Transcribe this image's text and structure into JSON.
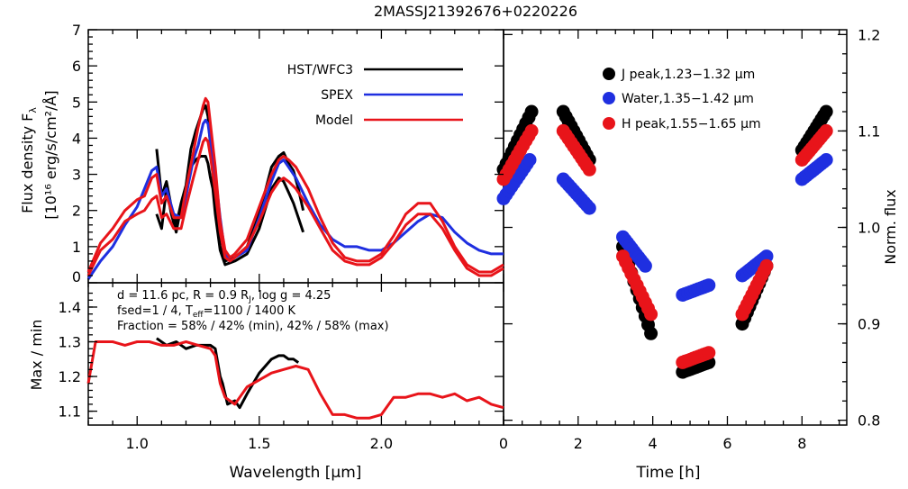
{
  "figure_title": "2MASSJ21392676+0220226",
  "spectrum_panel": {
    "ylabel_line1": "Flux density F",
    "ylabel_sub": "λ",
    "ylabel_line2": "[10¹⁶ erg/s/cm²/Å]",
    "legend": [
      {
        "label": "HST/WFC3",
        "color": "#000000"
      },
      {
        "label": "SPEX",
        "color": "#1f2fe0"
      },
      {
        "label": "Model",
        "color": "#e8141a"
      }
    ]
  },
  "ratio_panel": {
    "ylabel": "Max / min",
    "params_line1": "d = 11.6 pc, R = 0.9 R",
    "params_line1_sub": "J",
    "params_line1_tail": ", log g = 4.25",
    "params_line2": "fsed=1 / 4, T",
    "params_line2_sub": "eff",
    "params_line2_tail": "=1100 / 1400 K",
    "params_line3": "Fraction = 58% / 42% (min), 42% / 58% (max)",
    "xlabel": "Wavelength [μm]"
  },
  "lightcurve_panel": {
    "xlabel": "Time [h]",
    "ylabel": "Norm. flux",
    "legend": [
      {
        "label": "J peak,1.23−1.32 μm",
        "color": "#000000"
      },
      {
        "label": "Water,1.35−1.42 μm",
        "color": "#1f2fe0"
      },
      {
        "label": "H peak,1.55−1.65 μm",
        "color": "#e8141a"
      }
    ]
  },
  "chart_data": [
    {
      "type": "line",
      "title": "2MASSJ21392676+0220226",
      "xlim": [
        0.8,
        2.5
      ],
      "ylim": [
        0,
        7
      ],
      "yticks": [
        "0",
        "1",
        "2",
        "3",
        "4",
        "5",
        "6",
        "7"
      ],
      "series": [
        {
          "name": "HST/WFC3",
          "color": "#000000",
          "x": [
            1.08,
            1.1,
            1.12,
            1.14,
            1.16,
            1.18,
            1.2,
            1.22,
            1.24,
            1.26,
            1.27,
            1.28,
            1.29,
            1.3,
            1.31,
            1.32,
            1.34,
            1.36,
            1.4,
            1.45,
            1.5,
            1.55,
            1.58,
            1.6,
            1.62,
            1.64,
            1.66,
            1.68
          ],
          "y": [
            1.9,
            1.5,
            2.6,
            1.9,
            1.4,
            2.1,
            2.4,
            3.2,
            3.4,
            3.5,
            3.5,
            3.5,
            3.3,
            2.9,
            2.6,
            1.9,
            0.9,
            0.5,
            0.6,
            0.8,
            1.5,
            2.6,
            2.9,
            2.8,
            2.5,
            2.2,
            1.8,
            1.4
          ]
        },
        {
          "name": "HST/WFC3",
          "color": "#000000",
          "x": [
            1.08,
            1.1,
            1.12,
            1.14,
            1.16,
            1.18,
            1.2,
            1.22,
            1.24,
            1.26,
            1.27,
            1.28,
            1.29,
            1.3,
            1.31,
            1.32,
            1.34,
            1.36,
            1.4,
            1.45,
            1.5,
            1.55,
            1.58,
            1.6,
            1.62,
            1.64,
            1.66,
            1.68
          ],
          "y": [
            3.7,
            2.4,
            2.8,
            2.1,
            1.6,
            2.2,
            2.7,
            3.7,
            4.2,
            4.6,
            4.8,
            4.9,
            4.6,
            3.8,
            3.0,
            2.0,
            1.0,
            0.6,
            0.7,
            1.0,
            1.9,
            3.2,
            3.5,
            3.6,
            3.3,
            3.1,
            2.6,
            2.0
          ]
        },
        {
          "name": "SPEX",
          "color": "#1f2fe0",
          "x": [
            0.8,
            0.85,
            0.9,
            0.95,
            1.0,
            1.03,
            1.06,
            1.08,
            1.1,
            1.12,
            1.15,
            1.18,
            1.2,
            1.23,
            1.25,
            1.27,
            1.28,
            1.29,
            1.3,
            1.32,
            1.34,
            1.36,
            1.38,
            1.4,
            1.45,
            1.5,
            1.55,
            1.58,
            1.6,
            1.62,
            1.65,
            1.7,
            1.75,
            1.8,
            1.85,
            1.9,
            1.95,
            2.0,
            2.05,
            2.1,
            2.15,
            2.2,
            2.25,
            2.3,
            2.35,
            2.4,
            2.45,
            2.5
          ],
          "y": [
            0.1,
            0.6,
            1.0,
            1.6,
            2.1,
            2.6,
            3.1,
            3.2,
            2.4,
            2.6,
            1.9,
            1.8,
            2.4,
            3.4,
            3.8,
            4.4,
            4.5,
            4.4,
            3.9,
            3.0,
            1.8,
            0.8,
            0.6,
            0.7,
            0.9,
            1.8,
            2.8,
            3.3,
            3.4,
            3.2,
            2.9,
            2.2,
            1.6,
            1.2,
            1.0,
            1.0,
            0.9,
            0.9,
            1.1,
            1.4,
            1.7,
            1.9,
            1.8,
            1.4,
            1.1,
            0.9,
            0.8,
            0.8
          ]
        },
        {
          "name": "Model",
          "color": "#e8141a",
          "x": [
            0.8,
            0.85,
            0.9,
            0.95,
            1.0,
            1.03,
            1.06,
            1.08,
            1.1,
            1.12,
            1.15,
            1.18,
            1.2,
            1.23,
            1.25,
            1.27,
            1.28,
            1.29,
            1.3,
            1.32,
            1.34,
            1.36,
            1.38,
            1.4,
            1.45,
            1.5,
            1.55,
            1.58,
            1.6,
            1.62,
            1.65,
            1.7,
            1.75,
            1.8,
            1.85,
            1.9,
            1.95,
            2.0,
            2.05,
            2.1,
            2.15,
            2.2,
            2.25,
            2.3,
            2.35,
            2.4,
            2.45,
            2.5
          ],
          "y": [
            0.3,
            1.1,
            1.5,
            2.0,
            2.3,
            2.4,
            2.9,
            3.0,
            2.2,
            2.4,
            1.8,
            1.8,
            2.6,
            3.6,
            4.3,
            4.9,
            5.1,
            5.0,
            4.4,
            3.2,
            1.7,
            0.9,
            0.7,
            0.8,
            1.2,
            2.1,
            3.0,
            3.4,
            3.5,
            3.4,
            3.2,
            2.6,
            1.8,
            1.1,
            0.7,
            0.6,
            0.6,
            0.8,
            1.3,
            1.9,
            2.2,
            2.2,
            1.7,
            1.0,
            0.5,
            0.3,
            0.3,
            0.5
          ]
        },
        {
          "name": "Model",
          "color": "#e8141a",
          "x": [
            0.8,
            0.85,
            0.9,
            0.95,
            1.0,
            1.03,
            1.06,
            1.08,
            1.1,
            1.12,
            1.15,
            1.18,
            1.2,
            1.23,
            1.25,
            1.27,
            1.28,
            1.29,
            1.3,
            1.32,
            1.34,
            1.36,
            1.38,
            1.4,
            1.45,
            1.5,
            1.55,
            1.58,
            1.6,
            1.62,
            1.65,
            1.7,
            1.75,
            1.8,
            1.85,
            1.9,
            1.95,
            2.0,
            2.05,
            2.1,
            2.15,
            2.2,
            2.25,
            2.3,
            2.35,
            2.4,
            2.45,
            2.5
          ],
          "y": [
            0.2,
            0.9,
            1.2,
            1.7,
            1.9,
            2.0,
            2.3,
            2.4,
            1.8,
            1.9,
            1.5,
            1.5,
            2.1,
            2.9,
            3.4,
            3.9,
            4.0,
            3.9,
            3.5,
            2.5,
            1.4,
            0.7,
            0.6,
            0.7,
            1.0,
            1.7,
            2.5,
            2.8,
            2.9,
            2.8,
            2.6,
            2.1,
            1.5,
            0.9,
            0.6,
            0.5,
            0.5,
            0.7,
            1.1,
            1.6,
            1.9,
            1.9,
            1.5,
            0.9,
            0.4,
            0.2,
            0.2,
            0.4
          ]
        }
      ]
    },
    {
      "type": "line",
      "xlabel": "Wavelength [μm]",
      "ylabel": "Max / min",
      "xlim": [
        0.8,
        2.5
      ],
      "ylim": [
        1.06,
        1.47
      ],
      "xticks": [
        "1.0",
        "1.5",
        "2.0"
      ],
      "yticks": [
        "1.1",
        "1.2",
        "1.3",
        "1.4"
      ],
      "series": [
        {
          "name": "HST/WFC3",
          "color": "#000000",
          "x": [
            1.08,
            1.12,
            1.16,
            1.2,
            1.24,
            1.28,
            1.3,
            1.32,
            1.34,
            1.35,
            1.37,
            1.4,
            1.42,
            1.45,
            1.5,
            1.55,
            1.58,
            1.6,
            1.62,
            1.64,
            1.66
          ],
          "y": [
            1.31,
            1.29,
            1.3,
            1.28,
            1.29,
            1.29,
            1.29,
            1.28,
            1.2,
            1.18,
            1.12,
            1.13,
            1.11,
            1.15,
            1.21,
            1.25,
            1.26,
            1.26,
            1.25,
            1.25,
            1.24
          ]
        },
        {
          "name": "Model",
          "color": "#e8141a",
          "x": [
            0.8,
            0.83,
            0.86,
            0.9,
            0.95,
            1.0,
            1.05,
            1.1,
            1.15,
            1.2,
            1.25,
            1.3,
            1.32,
            1.34,
            1.36,
            1.38,
            1.4,
            1.42,
            1.45,
            1.5,
            1.55,
            1.6,
            1.65,
            1.7,
            1.75,
            1.8,
            1.85,
            1.9,
            1.95,
            2.0,
            2.05,
            2.1,
            2.15,
            2.2,
            2.25,
            2.3,
            2.35,
            2.4,
            2.45,
            2.5
          ],
          "y": [
            1.18,
            1.3,
            1.3,
            1.3,
            1.29,
            1.3,
            1.3,
            1.29,
            1.29,
            1.3,
            1.29,
            1.28,
            1.26,
            1.18,
            1.14,
            1.13,
            1.12,
            1.14,
            1.17,
            1.19,
            1.21,
            1.22,
            1.23,
            1.22,
            1.15,
            1.09,
            1.09,
            1.08,
            1.08,
            1.09,
            1.14,
            1.14,
            1.15,
            1.15,
            1.14,
            1.15,
            1.13,
            1.14,
            1.12,
            1.11
          ]
        }
      ]
    },
    {
      "type": "scatter",
      "xlabel": "Time [h]",
      "ylabel": "Norm. flux",
      "xlim": [
        0,
        9.2
      ],
      "ylim": [
        0.795,
        1.205
      ],
      "xticks": [
        "0",
        "2",
        "4",
        "6",
        "8"
      ],
      "yticks": [
        "0.8",
        "0.9",
        "1.0",
        "1.1",
        "1.2"
      ],
      "series": [
        {
          "name": "J peak,1.23−1.32 μm",
          "color": "#000000",
          "segments": [
            {
              "t0": 0.0,
              "t1": 0.75,
              "y0": 1.06,
              "y1": 1.12
            },
            {
              "t0": 1.6,
              "t1": 2.3,
              "y0": 1.12,
              "y1": 1.07
            },
            {
              "t0": 3.2,
              "t1": 3.95,
              "y0": 0.98,
              "y1": 0.89
            },
            {
              "t0": 4.8,
              "t1": 5.5,
              "y0": 0.85,
              "y1": 0.86
            },
            {
              "t0": 6.4,
              "t1": 7.05,
              "y0": 0.9,
              "y1": 0.96
            },
            {
              "t0": 8.0,
              "t1": 8.65,
              "y0": 1.08,
              "y1": 1.12
            }
          ]
        },
        {
          "name": "Water,1.35−1.42 μm",
          "color": "#1f2fe0",
          "segments": [
            {
              "t0": 0.0,
              "t1": 0.7,
              "y0": 1.03,
              "y1": 1.07
            },
            {
              "t0": 1.6,
              "t1": 2.3,
              "y0": 1.05,
              "y1": 1.02
            },
            {
              "t0": 3.2,
              "t1": 3.8,
              "y0": 0.99,
              "y1": 0.96
            },
            {
              "t0": 4.8,
              "t1": 5.5,
              "y0": 0.93,
              "y1": 0.94
            },
            {
              "t0": 6.4,
              "t1": 7.05,
              "y0": 0.95,
              "y1": 0.97
            },
            {
              "t0": 8.0,
              "t1": 8.65,
              "y0": 1.05,
              "y1": 1.07
            }
          ]
        },
        {
          "name": "H peak,1.55−1.65 μm",
          "color": "#e8141a",
          "segments": [
            {
              "t0": 0.0,
              "t1": 0.75,
              "y0": 1.05,
              "y1": 1.1
            },
            {
              "t0": 1.6,
              "t1": 2.3,
              "y0": 1.1,
              "y1": 1.06
            },
            {
              "t0": 3.2,
              "t1": 3.95,
              "y0": 0.97,
              "y1": 0.91
            },
            {
              "t0": 4.8,
              "t1": 5.5,
              "y0": 0.86,
              "y1": 0.87
            },
            {
              "t0": 6.4,
              "t1": 7.05,
              "y0": 0.91,
              "y1": 0.96
            },
            {
              "t0": 8.0,
              "t1": 8.65,
              "y0": 1.07,
              "y1": 1.1
            }
          ]
        }
      ]
    }
  ]
}
